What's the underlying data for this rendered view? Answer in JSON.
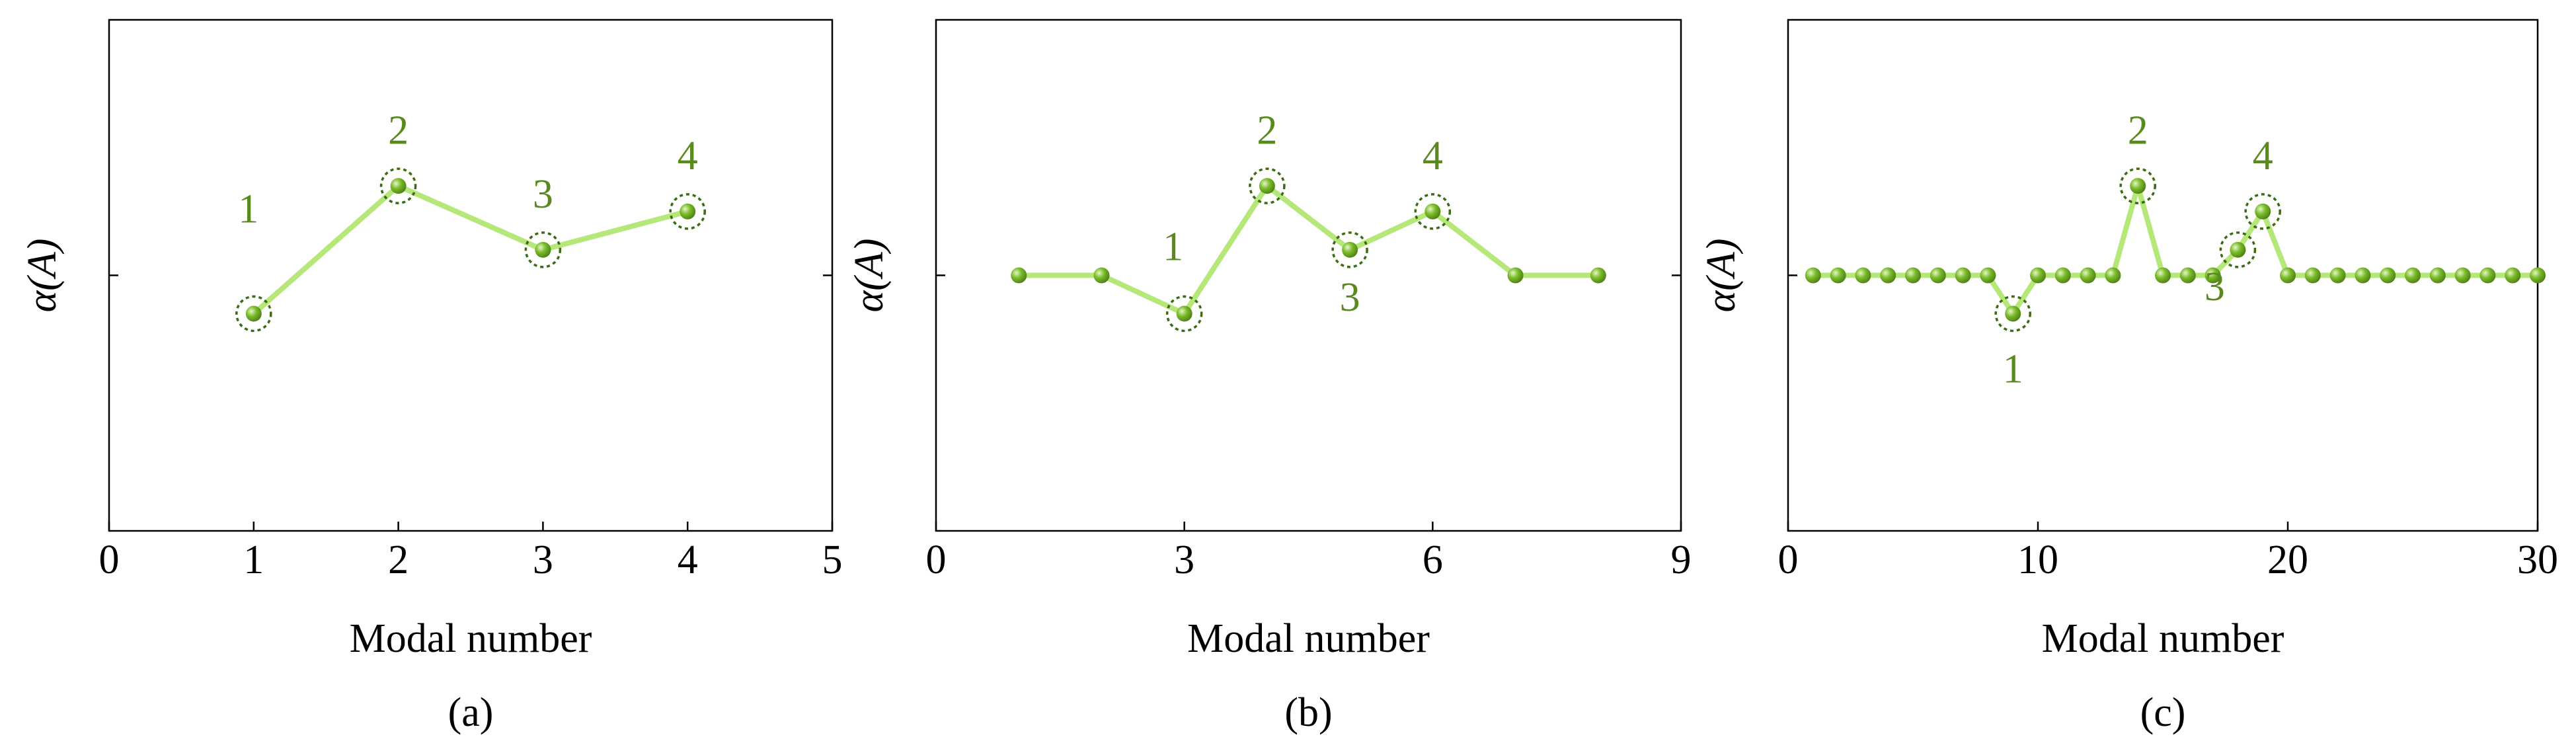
{
  "chart_data": [
    {
      "type": "line",
      "caption": "(a)",
      "xlabel": "Modal number",
      "ylabel": "α(A)",
      "x": [
        1,
        2,
        3,
        4
      ],
      "values": [
        -0.15,
        0.35,
        0.1,
        0.25
      ],
      "color": "#b5e878",
      "marker_color": "#7cbc2c",
      "xlim": [
        0,
        5
      ],
      "xticks": [
        0,
        1,
        2,
        3,
        4,
        5
      ],
      "ylim": [
        -1,
        1
      ],
      "yticks": [
        0
      ],
      "ytick_labels": false,
      "highlights": [
        {
          "label": "1",
          "x": 1
        },
        {
          "label": "2",
          "x": 2
        },
        {
          "label": "3",
          "x": 3
        },
        {
          "label": "4",
          "x": 4
        }
      ]
    },
    {
      "type": "line",
      "caption": "(b)",
      "xlabel": "Modal number",
      "ylabel": "α(A)",
      "x": [
        1,
        2,
        3,
        4,
        5,
        6,
        7,
        8
      ],
      "values": [
        0,
        0,
        -0.15,
        0.35,
        0.1,
        0.25,
        0,
        0
      ],
      "color": "#b5e878",
      "marker_color": "#7cbc2c",
      "xlim": [
        0,
        9
      ],
      "xticks": [
        0,
        3,
        6,
        9
      ],
      "ylim": [
        -1,
        1
      ],
      "yticks": [
        0
      ],
      "ytick_labels": false,
      "highlights": [
        {
          "label": "1",
          "x": 3
        },
        {
          "label": "2",
          "x": 4
        },
        {
          "label": "3",
          "x": 5
        },
        {
          "label": "4",
          "x": 6
        }
      ]
    },
    {
      "type": "line",
      "caption": "(c)",
      "xlabel": "Modal number",
      "ylabel": "α(A)",
      "x": [
        1,
        2,
        3,
        4,
        5,
        6,
        7,
        8,
        9,
        10,
        11,
        12,
        13,
        14,
        15,
        16,
        17,
        18,
        19,
        20,
        21,
        22,
        23,
        24,
        25,
        26,
        27,
        28,
        29,
        30
      ],
      "values": [
        0,
        0,
        0,
        0,
        0,
        0,
        0,
        0,
        -0.15,
        0,
        0,
        0,
        0,
        0.35,
        0,
        0,
        0,
        0.1,
        0.25,
        0,
        0,
        0,
        0,
        0,
        0,
        0,
        0,
        0,
        0,
        0
      ],
      "color": "#b5e878",
      "marker_color": "#7cbc2c",
      "xlim": [
        0,
        30
      ],
      "xticks": [
        0,
        10,
        20,
        30
      ],
      "ylim": [
        -1,
        1
      ],
      "yticks": [
        0
      ],
      "ytick_labels": false,
      "highlights": [
        {
          "label": "1",
          "x": 9
        },
        {
          "label": "2",
          "x": 14
        },
        {
          "label": "3",
          "x": 18
        },
        {
          "label": "4",
          "x": 19
        }
      ]
    }
  ]
}
